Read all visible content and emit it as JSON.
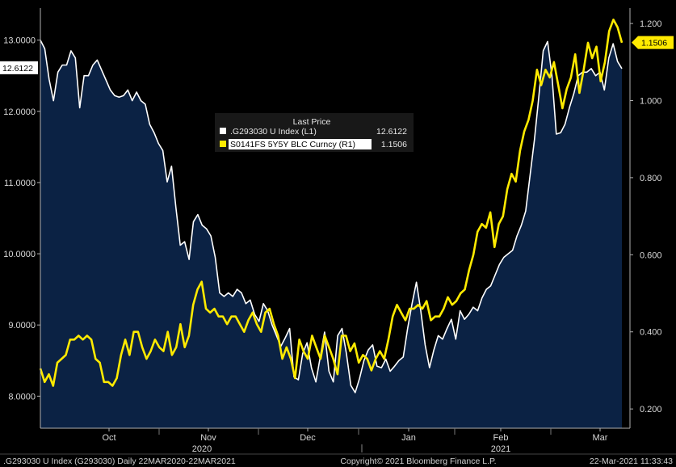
{
  "chart_data": {
    "type": "line",
    "legend": {
      "title": "Last Price",
      "entries": [
        {
          "label": ".G293030 U Index  (L1)",
          "value": "12.6122",
          "color": "#ffffff"
        },
        {
          "label": "S0141FS 5Y5Y BLC Curncy  (R1)",
          "value": "1.1506",
          "color": "#ffea00"
        }
      ]
    },
    "x_ticks": [
      "Oct",
      "Nov",
      "Dec",
      "Jan",
      "Feb",
      "Mar"
    ],
    "year_labels": [
      "2020",
      "2021"
    ],
    "left_axis": {
      "ticks": [
        "13.0000",
        "12.0000",
        "11.0000",
        "10.0000",
        "9.0000",
        "8.0000"
      ],
      "tick_values": [
        13,
        12,
        11,
        10,
        9,
        8
      ],
      "ylim": [
        7.55,
        13.45
      ],
      "last_label": "12.6122"
    },
    "right_axis": {
      "ticks": [
        "1.200",
        "1.000",
        "0.800",
        "0.600",
        "0.400",
        "0.200"
      ],
      "tick_values": [
        1.2,
        1.0,
        0.8,
        0.6,
        0.4,
        0.2
      ],
      "ylim": [
        0.15,
        1.24
      ],
      "last_label": "1.1506"
    },
    "series": [
      {
        "name": ".G293030 U Index",
        "axis": "left",
        "color": "#ffffff",
        "fill": "#0b2244",
        "values": [
          13.0,
          12.88,
          12.45,
          12.15,
          12.55,
          12.65,
          12.65,
          12.85,
          12.75,
          12.05,
          12.5,
          12.5,
          12.65,
          12.72,
          12.58,
          12.44,
          12.3,
          12.22,
          12.2,
          12.22,
          12.3,
          12.15,
          12.27,
          12.15,
          12.1,
          11.82,
          11.7,
          11.55,
          11.45,
          11.01,
          11.23,
          10.65,
          10.12,
          10.17,
          9.92,
          10.45,
          10.55,
          10.4,
          10.35,
          10.25,
          9.95,
          9.45,
          9.4,
          9.45,
          9.4,
          9.5,
          9.45,
          9.3,
          9.35,
          9.15,
          9.05,
          9.3,
          9.2,
          9.0,
          8.85,
          8.7,
          8.82,
          8.95,
          8.27,
          8.23,
          8.6,
          8.75,
          8.4,
          8.2,
          8.55,
          8.9,
          8.35,
          8.2,
          8.85,
          8.95,
          8.6,
          8.15,
          8.05,
          8.25,
          8.5,
          8.65,
          8.72,
          8.42,
          8.4,
          8.52,
          8.35,
          8.42,
          8.5,
          8.55,
          8.95,
          9.3,
          9.6,
          9.2,
          8.72,
          8.4,
          8.65,
          8.85,
          8.8,
          8.95,
          9.08,
          8.8,
          9.2,
          9.08,
          9.15,
          9.25,
          9.2,
          9.38,
          9.5,
          9.55,
          9.7,
          9.85,
          9.95,
          10.0,
          10.05,
          10.25,
          10.4,
          10.6,
          11.1,
          11.6,
          12.2,
          12.85,
          12.98,
          12.5,
          11.68,
          11.7,
          11.82,
          12.05,
          12.25,
          12.5,
          12.55,
          12.55,
          12.6,
          12.5,
          12.55,
          12.3,
          12.75,
          12.95,
          12.7,
          12.6
        ]
      },
      {
        "name": "S0141FS 5Y5Y BLC Curncy",
        "axis": "right",
        "color": "#ffea00",
        "values": [
          0.305,
          0.27,
          0.29,
          0.26,
          0.32,
          0.33,
          0.34,
          0.38,
          0.38,
          0.39,
          0.38,
          0.39,
          0.38,
          0.33,
          0.32,
          0.27,
          0.27,
          0.26,
          0.28,
          0.34,
          0.38,
          0.34,
          0.4,
          0.4,
          0.36,
          0.33,
          0.35,
          0.38,
          0.36,
          0.35,
          0.4,
          0.34,
          0.36,
          0.42,
          0.36,
          0.39,
          0.47,
          0.51,
          0.53,
          0.46,
          0.45,
          0.46,
          0.44,
          0.44,
          0.42,
          0.44,
          0.44,
          0.42,
          0.4,
          0.43,
          0.45,
          0.42,
          0.4,
          0.45,
          0.46,
          0.42,
          0.39,
          0.33,
          0.36,
          0.33,
          0.28,
          0.38,
          0.35,
          0.33,
          0.39,
          0.36,
          0.33,
          0.39,
          0.36,
          0.33,
          0.29,
          0.39,
          0.39,
          0.35,
          0.37,
          0.32,
          0.34,
          0.33,
          0.3,
          0.33,
          0.35,
          0.33,
          0.38,
          0.44,
          0.47,
          0.45,
          0.43,
          0.46,
          0.46,
          0.47,
          0.46,
          0.48,
          0.43,
          0.44,
          0.44,
          0.46,
          0.49,
          0.47,
          0.48,
          0.5,
          0.51,
          0.56,
          0.6,
          0.66,
          0.68,
          0.67,
          0.71,
          0.62,
          0.68,
          0.7,
          0.77,
          0.81,
          0.79,
          0.87,
          0.92,
          0.95,
          1.0,
          1.08,
          1.04,
          1.08,
          1.06,
          1.1,
          1.04,
          0.98,
          1.03,
          1.06,
          1.12,
          1.02,
          1.08,
          1.15,
          1.11,
          1.14,
          1.05,
          1.1,
          1.18,
          1.21,
          1.19,
          1.15
        ]
      }
    ]
  },
  "footer": {
    "left": ".G293030 U Index (G293030)  Daily 22MAR2020-22MAR2021",
    "center": "Copyright© 2021 Bloomberg Finance L.P.",
    "right": "22-Mar-2021 11:33:43"
  }
}
